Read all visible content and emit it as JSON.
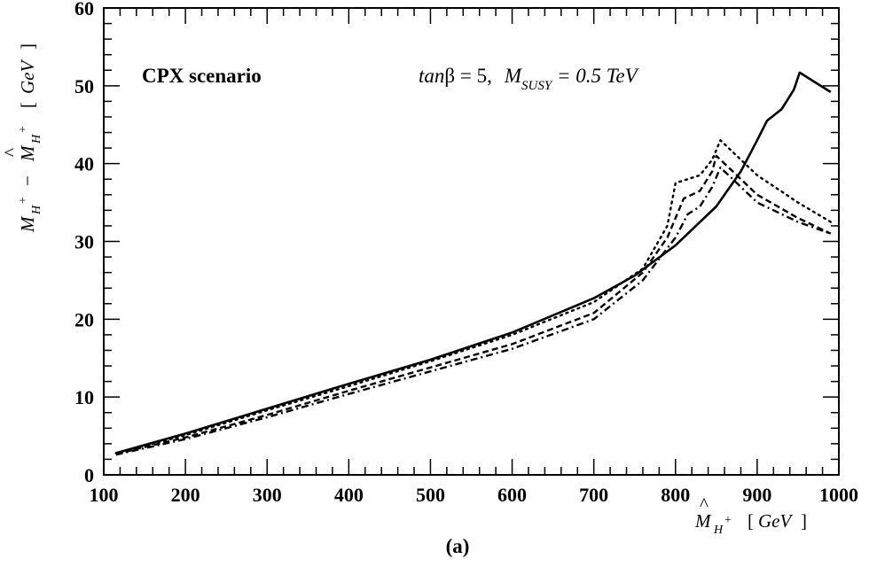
{
  "chart_data": {
    "type": "line",
    "title": "",
    "panel_label": "(a)",
    "annotations": {
      "scenario": "CPX  scenario",
      "params": {
        "tan": "tan",
        "beta": "β = 5,",
        "M": "M",
        "M_sub": "SUSY",
        "M_value": " = 0.5 TeV"
      }
    },
    "xlabel": {
      "M": "M",
      "hat": "^",
      "sub": "H",
      "sup": "+",
      "unit_open": "[",
      "unit": "GeV",
      "unit_close": "]"
    },
    "ylabel": {
      "M1": "M",
      "sub1": "H",
      "sup1": "+",
      "minus": "−",
      "hat": "^",
      "M2": "M",
      "sub2": "H",
      "sup2": "+",
      "unit_open": "[",
      "unit": "GeV",
      "unit_close": "]"
    },
    "xlim": [
      100,
      1000
    ],
    "ylim": [
      0,
      60
    ],
    "xticks": [
      100,
      200,
      300,
      400,
      500,
      600,
      700,
      800,
      900,
      1000
    ],
    "yticks": [
      0,
      10,
      20,
      30,
      40,
      50,
      60
    ],
    "series": [
      {
        "style": "solid",
        "x": [
          115,
          200,
          300,
          400,
          500,
          600,
          700,
          750,
          800,
          850,
          880,
          900,
          912,
          930,
          945,
          952,
          970,
          990
        ],
        "y": [
          2.8,
          5.3,
          8.5,
          11.7,
          14.8,
          18.3,
          22.7,
          25.6,
          29.5,
          34.5,
          39.0,
          43.0,
          45.5,
          47.0,
          49.5,
          51.7,
          50.5,
          49.2
        ]
      },
      {
        "style": "dotted",
        "x": [
          115,
          200,
          300,
          400,
          500,
          600,
          700,
          760,
          790,
          800,
          830,
          845,
          855,
          870,
          900,
          950,
          990
        ],
        "y": [
          2.8,
          5.1,
          8.3,
          11.4,
          14.6,
          18.0,
          22.2,
          26.5,
          32.0,
          37.5,
          38.5,
          40.5,
          43.0,
          41.5,
          38.5,
          35.0,
          32.5
        ]
      },
      {
        "style": "dashed",
        "x": [
          115,
          200,
          300,
          400,
          500,
          600,
          700,
          760,
          790,
          810,
          830,
          845,
          850,
          870,
          900,
          950,
          990
        ],
        "y": [
          2.7,
          4.8,
          7.7,
          10.8,
          13.8,
          16.8,
          20.8,
          26.0,
          30.5,
          35.5,
          36.5,
          39.0,
          41.0,
          39.0,
          36.0,
          33.0,
          31.0
        ]
      },
      {
        "style": "dash-dot",
        "x": [
          115,
          200,
          300,
          400,
          500,
          600,
          700,
          760,
          800,
          815,
          830,
          845,
          855,
          870,
          900,
          950,
          990
        ],
        "y": [
          2.6,
          4.6,
          7.4,
          10.4,
          13.3,
          16.2,
          20.0,
          25.0,
          30.5,
          33.5,
          34.5,
          37.0,
          39.5,
          38.0,
          35.0,
          32.5,
          31.0
        ]
      }
    ]
  }
}
